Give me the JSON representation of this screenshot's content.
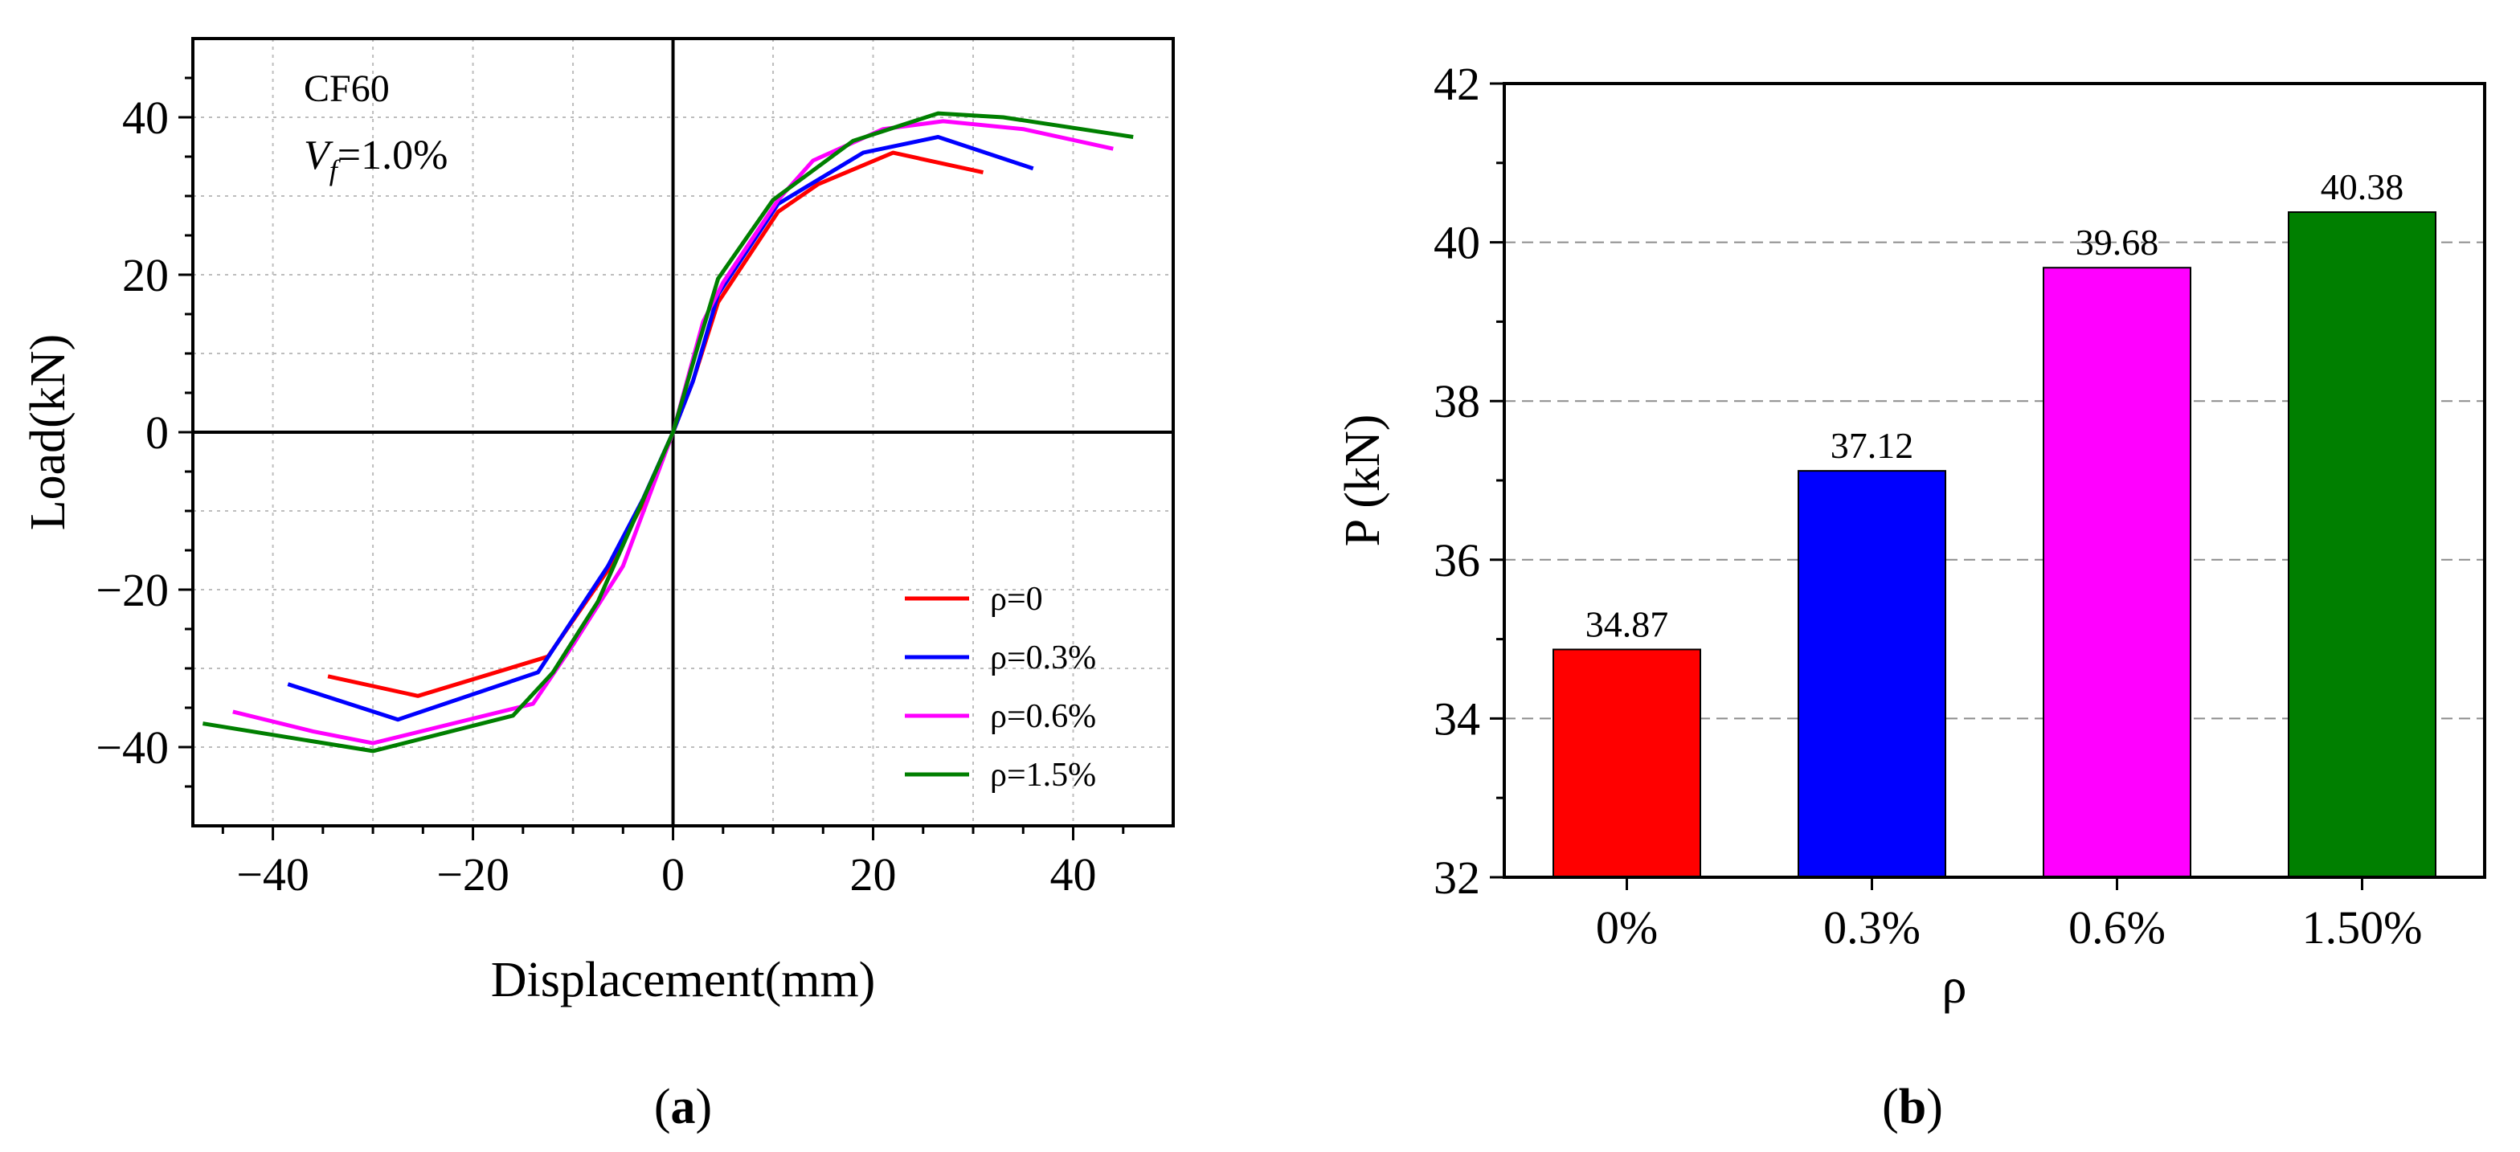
{
  "chart_data": [
    {
      "panel": "a",
      "caption_label": "a",
      "type": "line",
      "xlabel": "Displacement(mm)",
      "ylabel": "Load(kN)",
      "xlim": [
        -48,
        50
      ],
      "ylim": [
        -50,
        50
      ],
      "xticks": [
        "−40",
        "−20",
        "0",
        "20",
        "40"
      ],
      "xtick_values": [
        -40,
        -20,
        0,
        20,
        40
      ],
      "yticks": [
        "−40",
        "−20",
        "0",
        "20",
        "40"
      ],
      "ytick_values": [
        -40,
        -20,
        0,
        20,
        40
      ],
      "grid": true,
      "annotation": {
        "line1": "CF60",
        "var_main": "V",
        "var_sub": "f",
        "var_value": "=1.0%"
      },
      "legend_position": "bottom-right",
      "series": [
        {
          "name": "ρ=0",
          "color": "#ff0000",
          "points": [
            [
              -34.5,
              -31
            ],
            [
              -25.5,
              -33.5
            ],
            [
              -12.5,
              -28.5
            ],
            [
              -6.5,
              -17.5
            ],
            [
              -3,
              -9
            ],
            [
              0,
              0
            ],
            [
              2,
              6.5
            ],
            [
              4.5,
              16.5
            ],
            [
              10.5,
              28
            ],
            [
              14.5,
              31.5
            ],
            [
              22,
              35.5
            ],
            [
              31,
              33
            ]
          ]
        },
        {
          "name": "ρ=0.3%",
          "color": "#0000ff",
          "points": [
            [
              -38.5,
              -32
            ],
            [
              -27.5,
              -36.5
            ],
            [
              -13.5,
              -30.5
            ],
            [
              -6.5,
              -17
            ],
            [
              -3,
              -8.5
            ],
            [
              0,
              0
            ],
            [
              2,
              6.5
            ],
            [
              4.5,
              17.5
            ],
            [
              10.5,
              29
            ],
            [
              19,
              35.5
            ],
            [
              26.5,
              37.5
            ],
            [
              36,
              33.5
            ]
          ]
        },
        {
          "name": "ρ=0.6%",
          "color": "#ff00ff",
          "points": [
            [
              -44,
              -35.5
            ],
            [
              -36,
              -38
            ],
            [
              -30,
              -39.5
            ],
            [
              -14,
              -34.5
            ],
            [
              -10,
              -27
            ],
            [
              -5,
              -17
            ],
            [
              0,
              0
            ],
            [
              3,
              14
            ],
            [
              5,
              19
            ],
            [
              10.5,
              29.5
            ],
            [
              14,
              34.5
            ],
            [
              21,
              38.5
            ],
            [
              27,
              39.5
            ],
            [
              35,
              38.5
            ],
            [
              44,
              36
            ]
          ]
        },
        {
          "name": "ρ=1.5%",
          "color": "#007f00",
          "points": [
            [
              -47,
              -37
            ],
            [
              -30,
              -40.5
            ],
            [
              -16,
              -36
            ],
            [
              -12,
              -30.5
            ],
            [
              -7.5,
              -21.5
            ],
            [
              0,
              0
            ],
            [
              2.5,
              11
            ],
            [
              4.5,
              19.5
            ],
            [
              10,
              29.5
            ],
            [
              18,
              37
            ],
            [
              26.5,
              40.5
            ],
            [
              33,
              40
            ],
            [
              46,
              37.5
            ]
          ]
        }
      ]
    },
    {
      "panel": "b",
      "caption_label": "b",
      "type": "bar",
      "xlabel": "ρ",
      "ylabel": "P (kN)",
      "ylim": [
        32,
        42
      ],
      "yticks": [
        "32",
        "34",
        "36",
        "38",
        "40",
        "42"
      ],
      "ytick_values": [
        32,
        34,
        36,
        38,
        40,
        42
      ],
      "grid": true,
      "categories": [
        "0%",
        "0.3%",
        "0.6%",
        "1.50%"
      ],
      "values": [
        34.87,
        37.12,
        39.68,
        40.38
      ],
      "value_labels": [
        "34.87",
        "37.12",
        "39.68",
        "40.38"
      ],
      "colors": [
        "#ff0000",
        "#0000ff",
        "#ff00ff",
        "#007f00"
      ]
    }
  ]
}
